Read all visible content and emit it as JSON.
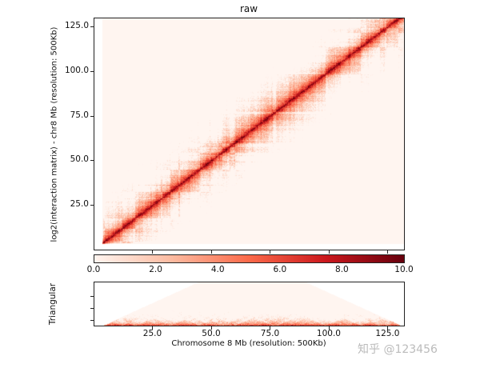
{
  "chart_data": [
    {
      "type": "heatmap",
      "title": "raw",
      "ylabel": "log2(interaction matrix) - chr8 Mb (resolution: 500Kb)",
      "yticks": [
        "25.0",
        "50.0",
        "75.0",
        "100.0",
        "125.0"
      ],
      "ytick_values": [
        25,
        50,
        75,
        100,
        125
      ],
      "ylim": [
        0,
        130
      ],
      "xlim": [
        0,
        132
      ],
      "colormap": "Reds",
      "grid": false
    },
    {
      "type": "colorbar",
      "ticks": [
        "0.0",
        "2.0",
        "4.0",
        "6.0",
        "8.0",
        "10.0"
      ],
      "tick_values": [
        0,
        2,
        4,
        6,
        8,
        10
      ],
      "range": [
        0,
        10
      ],
      "colors": [
        "#fff5f0",
        "#fcbba1",
        "#fb6a4a",
        "#cb181d",
        "#67000d"
      ]
    },
    {
      "type": "heatmap",
      "ylabel": "Triangular",
      "xlabel": "Chromosome 8 Mb (resolution: 500Kb)",
      "xticks": [
        "25.0",
        "50.0",
        "75.0",
        "100.0",
        "125.0"
      ],
      "xtick_values": [
        25,
        50,
        75,
        100,
        125
      ],
      "xlim": [
        0,
        132
      ],
      "colormap": "Reds"
    }
  ],
  "watermark": "知乎 @123456"
}
